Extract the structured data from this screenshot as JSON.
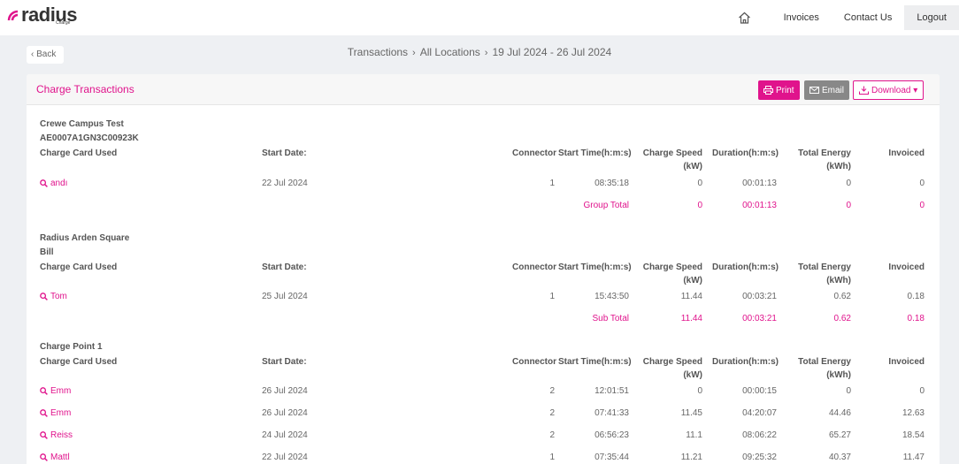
{
  "header": {
    "logo_text": "radius",
    "logo_sub": "Charge",
    "nav": {
      "invoices": "Invoices",
      "contact": "Contact Us",
      "logout": "Logout"
    }
  },
  "back_label": "‹ Back",
  "breadcrumb": [
    "Transactions",
    "All Locations",
    "19 Jul 2024 - 26 Jul 2024"
  ],
  "breadcrumb_sep": "›",
  "panel": {
    "title": "Charge Transactions",
    "print": "Print",
    "email": "Email",
    "download": "Download ▾"
  },
  "columns": {
    "card": "Charge Card Used",
    "start_date": "Start Date:",
    "connector": "Connector",
    "start_time": "Start Time(h:m:s)",
    "speed_1": "Charge Speed",
    "speed_2": "(kW)",
    "duration": "Duration(h:m:s)",
    "energy_1": "Total Energy",
    "energy_2": "(kWh)",
    "invoiced": "Invoiced"
  },
  "groups": [
    {
      "line1": "Crewe Campus Test",
      "line2": "AE0007A1GN3C00923K",
      "rows": [
        {
          "card": "andı",
          "date": "22 Jul 2024",
          "connector": "1",
          "time": "08:35:18",
          "speed": "0",
          "duration": "00:01:13",
          "energy": "0",
          "invoiced": "0"
        }
      ],
      "total": {
        "label": "Group Total",
        "speed": "0",
        "duration": "00:01:13",
        "energy": "0",
        "invoiced": "0"
      }
    },
    {
      "line1": "Radius Arden Square",
      "line2": "Bill",
      "rows": [
        {
          "card": "Tom",
          "date": "25 Jul 2024",
          "connector": "1",
          "time": "15:43:50",
          "speed": "11.44",
          "duration": "00:03:21",
          "energy": "0.62",
          "invoiced": "0.18"
        }
      ],
      "total": {
        "label": "Sub Total",
        "speed": "11.44",
        "duration": "00:03:21",
        "energy": "0.62",
        "invoiced": "0.18"
      }
    },
    {
      "line1": "Charge Point 1",
      "rows": [
        {
          "card": "Emm",
          "date": "26 Jul 2024",
          "connector": "2",
          "time": "12:01:51",
          "speed": "0",
          "duration": "00:00:15",
          "energy": "0",
          "invoiced": "0"
        },
        {
          "card": "Emm",
          "date": "26 Jul 2024",
          "connector": "2",
          "time": "07:41:33",
          "speed": "11.45",
          "duration": "04:20:07",
          "energy": "44.46",
          "invoiced": "12.63"
        },
        {
          "card": "Reiss",
          "date": "24 Jul 2024",
          "connector": "2",
          "time": "06:56:23",
          "speed": "11.1",
          "duration": "08:06:22",
          "energy": "65.27",
          "invoiced": "18.54"
        },
        {
          "card": "Mattl",
          "date": "22 Jul 2024",
          "connector": "1",
          "time": "07:35:44",
          "speed": "11.21",
          "duration": "09:25:32",
          "energy": "40.37",
          "invoiced": "11.47"
        }
      ]
    }
  ],
  "colors": {
    "accent": "#e0138c",
    "email_button": "#888888",
    "background": "#eef0f3"
  }
}
